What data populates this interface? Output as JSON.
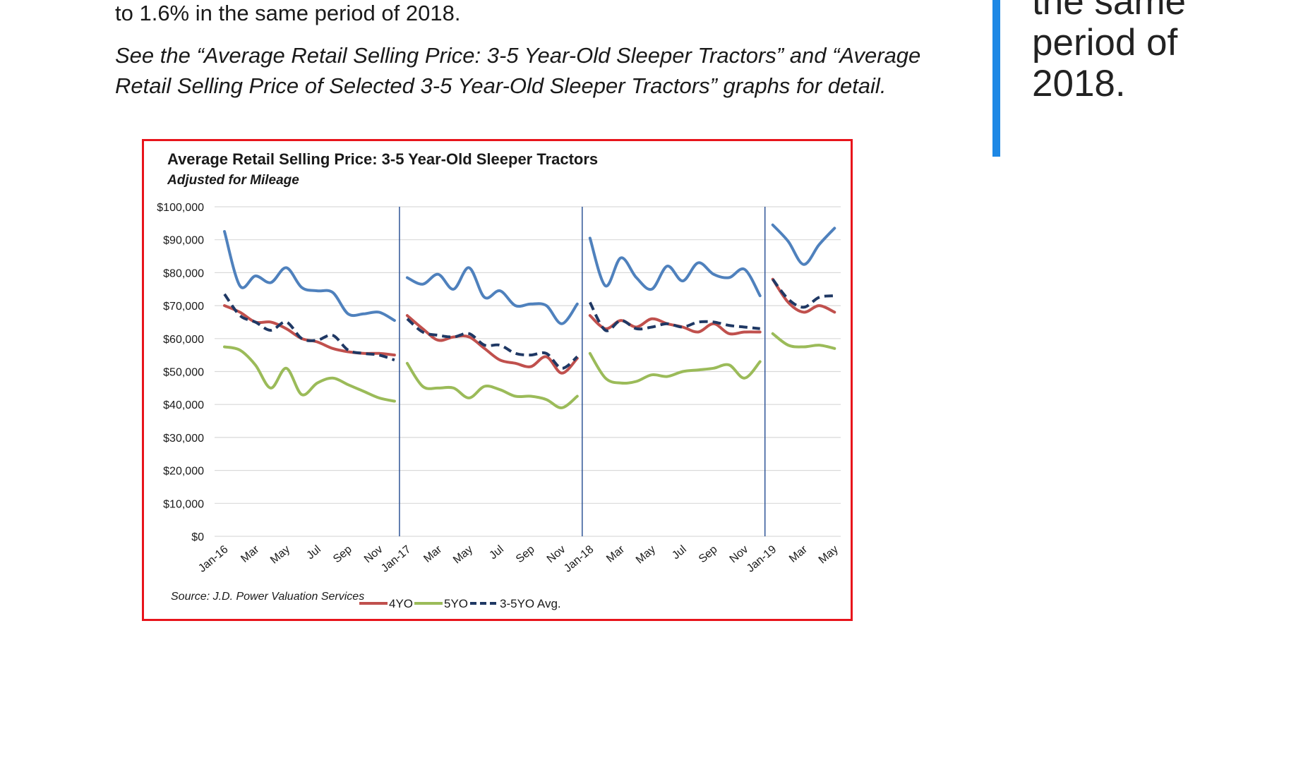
{
  "article": {
    "line_top": "to 1.6% in the same period of 2018.",
    "italic_note": "See the “Average Retail Selling Price: 3-5 Year-Old Sleeper Tractors” and “Average Retail Selling Price of Selected 3-5 Year-Old Sleeper Tractors” graphs for detail."
  },
  "pull_quote": {
    "lines": [
      "the same",
      "period of",
      "2018."
    ]
  },
  "colors": {
    "accent_bar": "#1e88e5",
    "chart_border": "#e8141b"
  },
  "chart_data": {
    "type": "line",
    "title": "Average Retail Selling Price: 3-5 Year-Old Sleeper Tractors",
    "subtitle": "Adjusted for Mileage",
    "source": "Source: J.D. Power Valuation Services",
    "ylim": [
      0,
      100000
    ],
    "y_ticks": [
      "$0",
      "$10,000",
      "$20,000",
      "$30,000",
      "$40,000",
      "$50,000",
      "$60,000",
      "$70,000",
      "$80,000",
      "$90,000",
      "$100,000"
    ],
    "x_tick_labels": [
      "Jan-16",
      "Mar",
      "May",
      "Jul",
      "Sep",
      "Nov",
      "Jan-17",
      "Mar",
      "May",
      "Jul",
      "Sep",
      "Nov",
      "Jan-18",
      "Mar",
      "May",
      "Jul",
      "Sep",
      "Nov",
      "Jan-19",
      "Mar",
      "May"
    ],
    "year_separators_before": [
      "Jan-17",
      "Jan-18",
      "Jan-19"
    ],
    "segments": [
      {
        "year": "2016",
        "months": [
          "Jan-16",
          "Feb",
          "Mar",
          "Apr",
          "May",
          "Jun",
          "Jul",
          "Aug",
          "Sep",
          "Oct",
          "Nov",
          "Dec"
        ]
      },
      {
        "year": "2017",
        "months": [
          "Jan-17",
          "Feb",
          "Mar",
          "Apr",
          "May",
          "Jun",
          "Jul",
          "Aug",
          "Sep",
          "Oct",
          "Nov",
          "Dec"
        ]
      },
      {
        "year": "2018",
        "months": [
          "Jan-18",
          "Feb",
          "Mar",
          "Apr",
          "May",
          "Jun",
          "Jul",
          "Aug",
          "Sep",
          "Oct",
          "Nov",
          "Dec"
        ]
      },
      {
        "year": "2019",
        "months": [
          "Jan-19",
          "Feb",
          "Mar",
          "Apr",
          "May"
        ]
      }
    ],
    "series": [
      {
        "name": "4YO",
        "color": "#c0504d",
        "style": "solid",
        "values": [
          70000,
          68000,
          65000,
          65000,
          63000,
          60000,
          59000,
          57000,
          56000,
          55500,
          55500,
          55000,
          67000,
          63000,
          59500,
          60500,
          60500,
          57000,
          53500,
          52500,
          51500,
          54500,
          49500,
          54000,
          67000,
          63000,
          65500,
          63500,
          66000,
          64500,
          63500,
          62000,
          64500,
          61500,
          62000,
          62000,
          78000,
          71000,
          68000,
          70000,
          68000
        ]
      },
      {
        "name": "5YO",
        "color": "#9bbb59",
        "style": "solid",
        "values": [
          57500,
          56500,
          52000,
          45000,
          51000,
          43000,
          46500,
          48000,
          46000,
          44000,
          42000,
          41000,
          52500,
          45500,
          45000,
          45000,
          42000,
          45500,
          44500,
          42500,
          42500,
          41500,
          39000,
          42500,
          55500,
          48000,
          46500,
          47000,
          49000,
          48500,
          50000,
          50500,
          51000,
          52000,
          48000,
          53000,
          61500,
          58000,
          57500,
          58000,
          57000
        ]
      },
      {
        "name": "3-5YO Avg.",
        "color": "#1f3864",
        "style": "dashed",
        "values": [
          73500,
          67000,
          65000,
          62500,
          65000,
          60000,
          59500,
          61000,
          56500,
          55500,
          55000,
          53500,
          66000,
          62000,
          61000,
          60500,
          61500,
          58000,
          58000,
          55500,
          55000,
          55500,
          51000,
          54500,
          71000,
          62500,
          65500,
          63000,
          63500,
          64500,
          63500,
          65000,
          65000,
          64000,
          63500,
          63000,
          78000,
          72000,
          69500,
          72500,
          73000
        ]
      },
      {
        "name": "",
        "color": "#4f81bd",
        "style": "solid",
        "values": [
          92500,
          76000,
          79000,
          77000,
          81500,
          75500,
          74500,
          74000,
          67500,
          67500,
          68000,
          65500,
          78500,
          76500,
          79500,
          75000,
          81500,
          72500,
          74500,
          70000,
          70500,
          70000,
          64500,
          70500,
          90500,
          76000,
          84500,
          78500,
          75000,
          82000,
          77500,
          83000,
          79500,
          78500,
          81000,
          73000,
          94500,
          89500,
          82500,
          88500,
          93500
        ]
      }
    ]
  }
}
